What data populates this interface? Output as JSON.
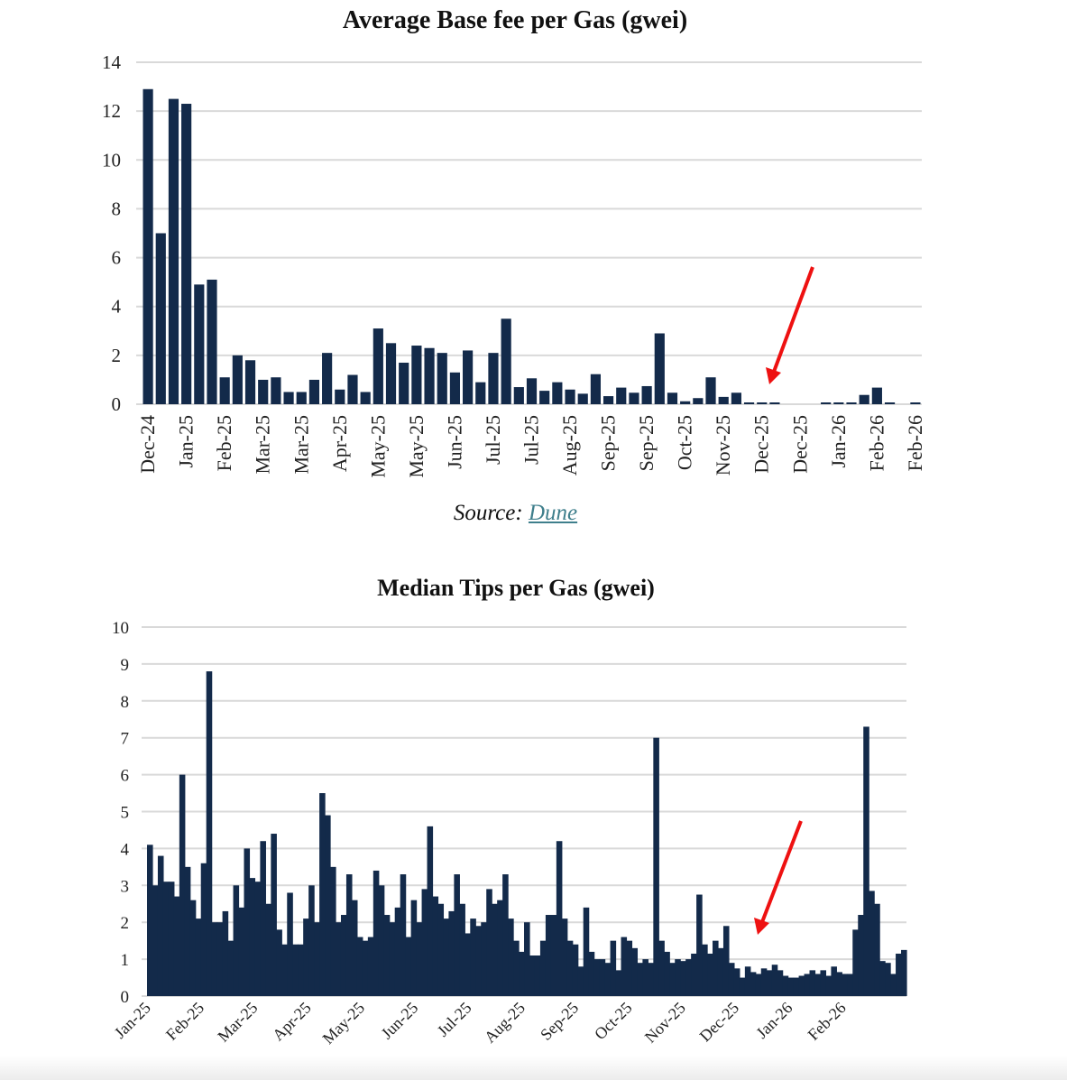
{
  "chart_data": [
    {
      "type": "bar",
      "title": "Average Base fee per Gas (gwei)",
      "xlabel": "",
      "ylabel": "",
      "ylim": [
        0,
        14
      ],
      "yticks": [
        "0",
        "2",
        "4",
        "6",
        "8",
        "10",
        "12",
        "14"
      ],
      "grid": true,
      "color": "#132a4a",
      "tick_labels": [
        "Dec-24",
        "Jan-25",
        "Feb-25",
        "Mar-25",
        "Mar-25",
        "Apr-25",
        "May-25",
        "May-25",
        "Jun-25",
        "Jul-25",
        "Jul-25",
        "Aug-25",
        "Sep-25",
        "Sep-25",
        "Oct-25",
        "Nov-25",
        "Dec-25",
        "Dec-25",
        "Jan-26",
        "Feb-26",
        "Feb-26"
      ],
      "values": [
        12.9,
        7.0,
        12.5,
        12.3,
        4.9,
        5.1,
        1.1,
        2.0,
        1.8,
        1.0,
        1.1,
        0.5,
        0.5,
        1.0,
        2.1,
        0.6,
        1.2,
        0.5,
        3.1,
        2.5,
        1.7,
        2.4,
        2.3,
        2.1,
        1.3,
        2.2,
        0.9,
        2.1,
        3.5,
        0.7,
        1.06,
        0.55,
        0.9,
        0.6,
        0.43,
        1.23,
        0.33,
        0.68,
        0.47,
        0.74,
        2.9,
        0.47,
        0.12,
        0.25,
        1.1,
        0.3,
        0.47,
        0.05,
        0.05,
        0.07,
        0,
        0,
        0,
        0.05,
        0.05,
        0.05,
        0.38,
        0.68,
        0.05,
        0,
        0.05
      ],
      "annotation": "red arrow pointing at near-zero values in Dec-25"
    },
    {
      "type": "bar",
      "title": "Median Tips per Gas (gwei)",
      "xlabel": "",
      "ylabel": "",
      "ylim": [
        0,
        10
      ],
      "yticks": [
        "0",
        "1",
        "2",
        "3",
        "4",
        "5",
        "6",
        "7",
        "8",
        "9",
        "10"
      ],
      "grid": true,
      "color": "#132a4a",
      "tick_labels": [
        "Jan-25",
        "Feb-25",
        "Mar-25",
        "Apr-25",
        "May-25",
        "Jun-25",
        "Jul-25",
        "Aug-25",
        "Sep-25",
        "Oct-25",
        "Nov-25",
        "Dec-25",
        "Jan-26",
        "Feb-26"
      ],
      "values": [
        4.1,
        3.0,
        3.8,
        3.1,
        3.1,
        2.7,
        6.0,
        3.5,
        2.6,
        2.1,
        3.6,
        8.8,
        2.0,
        2.0,
        2.3,
        1.5,
        3.0,
        2.4,
        4.0,
        3.2,
        3.1,
        4.2,
        2.5,
        4.4,
        1.8,
        1.4,
        2.8,
        1.4,
        1.4,
        2.1,
        3.0,
        2.0,
        5.5,
        4.9,
        3.5,
        2.0,
        2.2,
        3.3,
        2.6,
        1.6,
        1.5,
        1.6,
        3.4,
        3.0,
        2.2,
        2.0,
        2.4,
        3.3,
        1.6,
        2.6,
        2.0,
        2.9,
        4.6,
        2.7,
        2.5,
        2.1,
        2.3,
        3.3,
        2.5,
        1.7,
        2.1,
        1.9,
        2.0,
        2.9,
        2.5,
        2.6,
        3.3,
        2.1,
        1.5,
        1.2,
        2.0,
        1.1,
        1.1,
        1.5,
        2.2,
        2.2,
        4.2,
        2.1,
        1.5,
        1.4,
        0.8,
        2.4,
        1.2,
        1.0,
        1.0,
        0.9,
        1.5,
        0.7,
        1.6,
        1.5,
        1.3,
        0.9,
        1.0,
        0.9,
        7.0,
        1.5,
        1.2,
        0.9,
        1.0,
        0.95,
        1.0,
        1.15,
        2.75,
        1.4,
        1.15,
        1.5,
        1.3,
        1.9,
        0.9,
        0.75,
        0.5,
        0.8,
        0.65,
        0.6,
        0.75,
        0.7,
        0.85,
        0.7,
        0.55,
        0.5,
        0.5,
        0.55,
        0.6,
        0.7,
        0.6,
        0.7,
        0.55,
        0.8,
        0.65,
        0.6,
        0.6,
        1.8,
        2.2,
        7.3,
        2.85,
        2.5,
        0.95,
        0.9,
        0.6,
        1.15,
        1.25
      ],
      "annotation": "red arrow pointing at low values in Dec-25"
    }
  ],
  "source": {
    "prefix": "Source:",
    "link": "Dune"
  },
  "arrow_color": "#ee1111"
}
